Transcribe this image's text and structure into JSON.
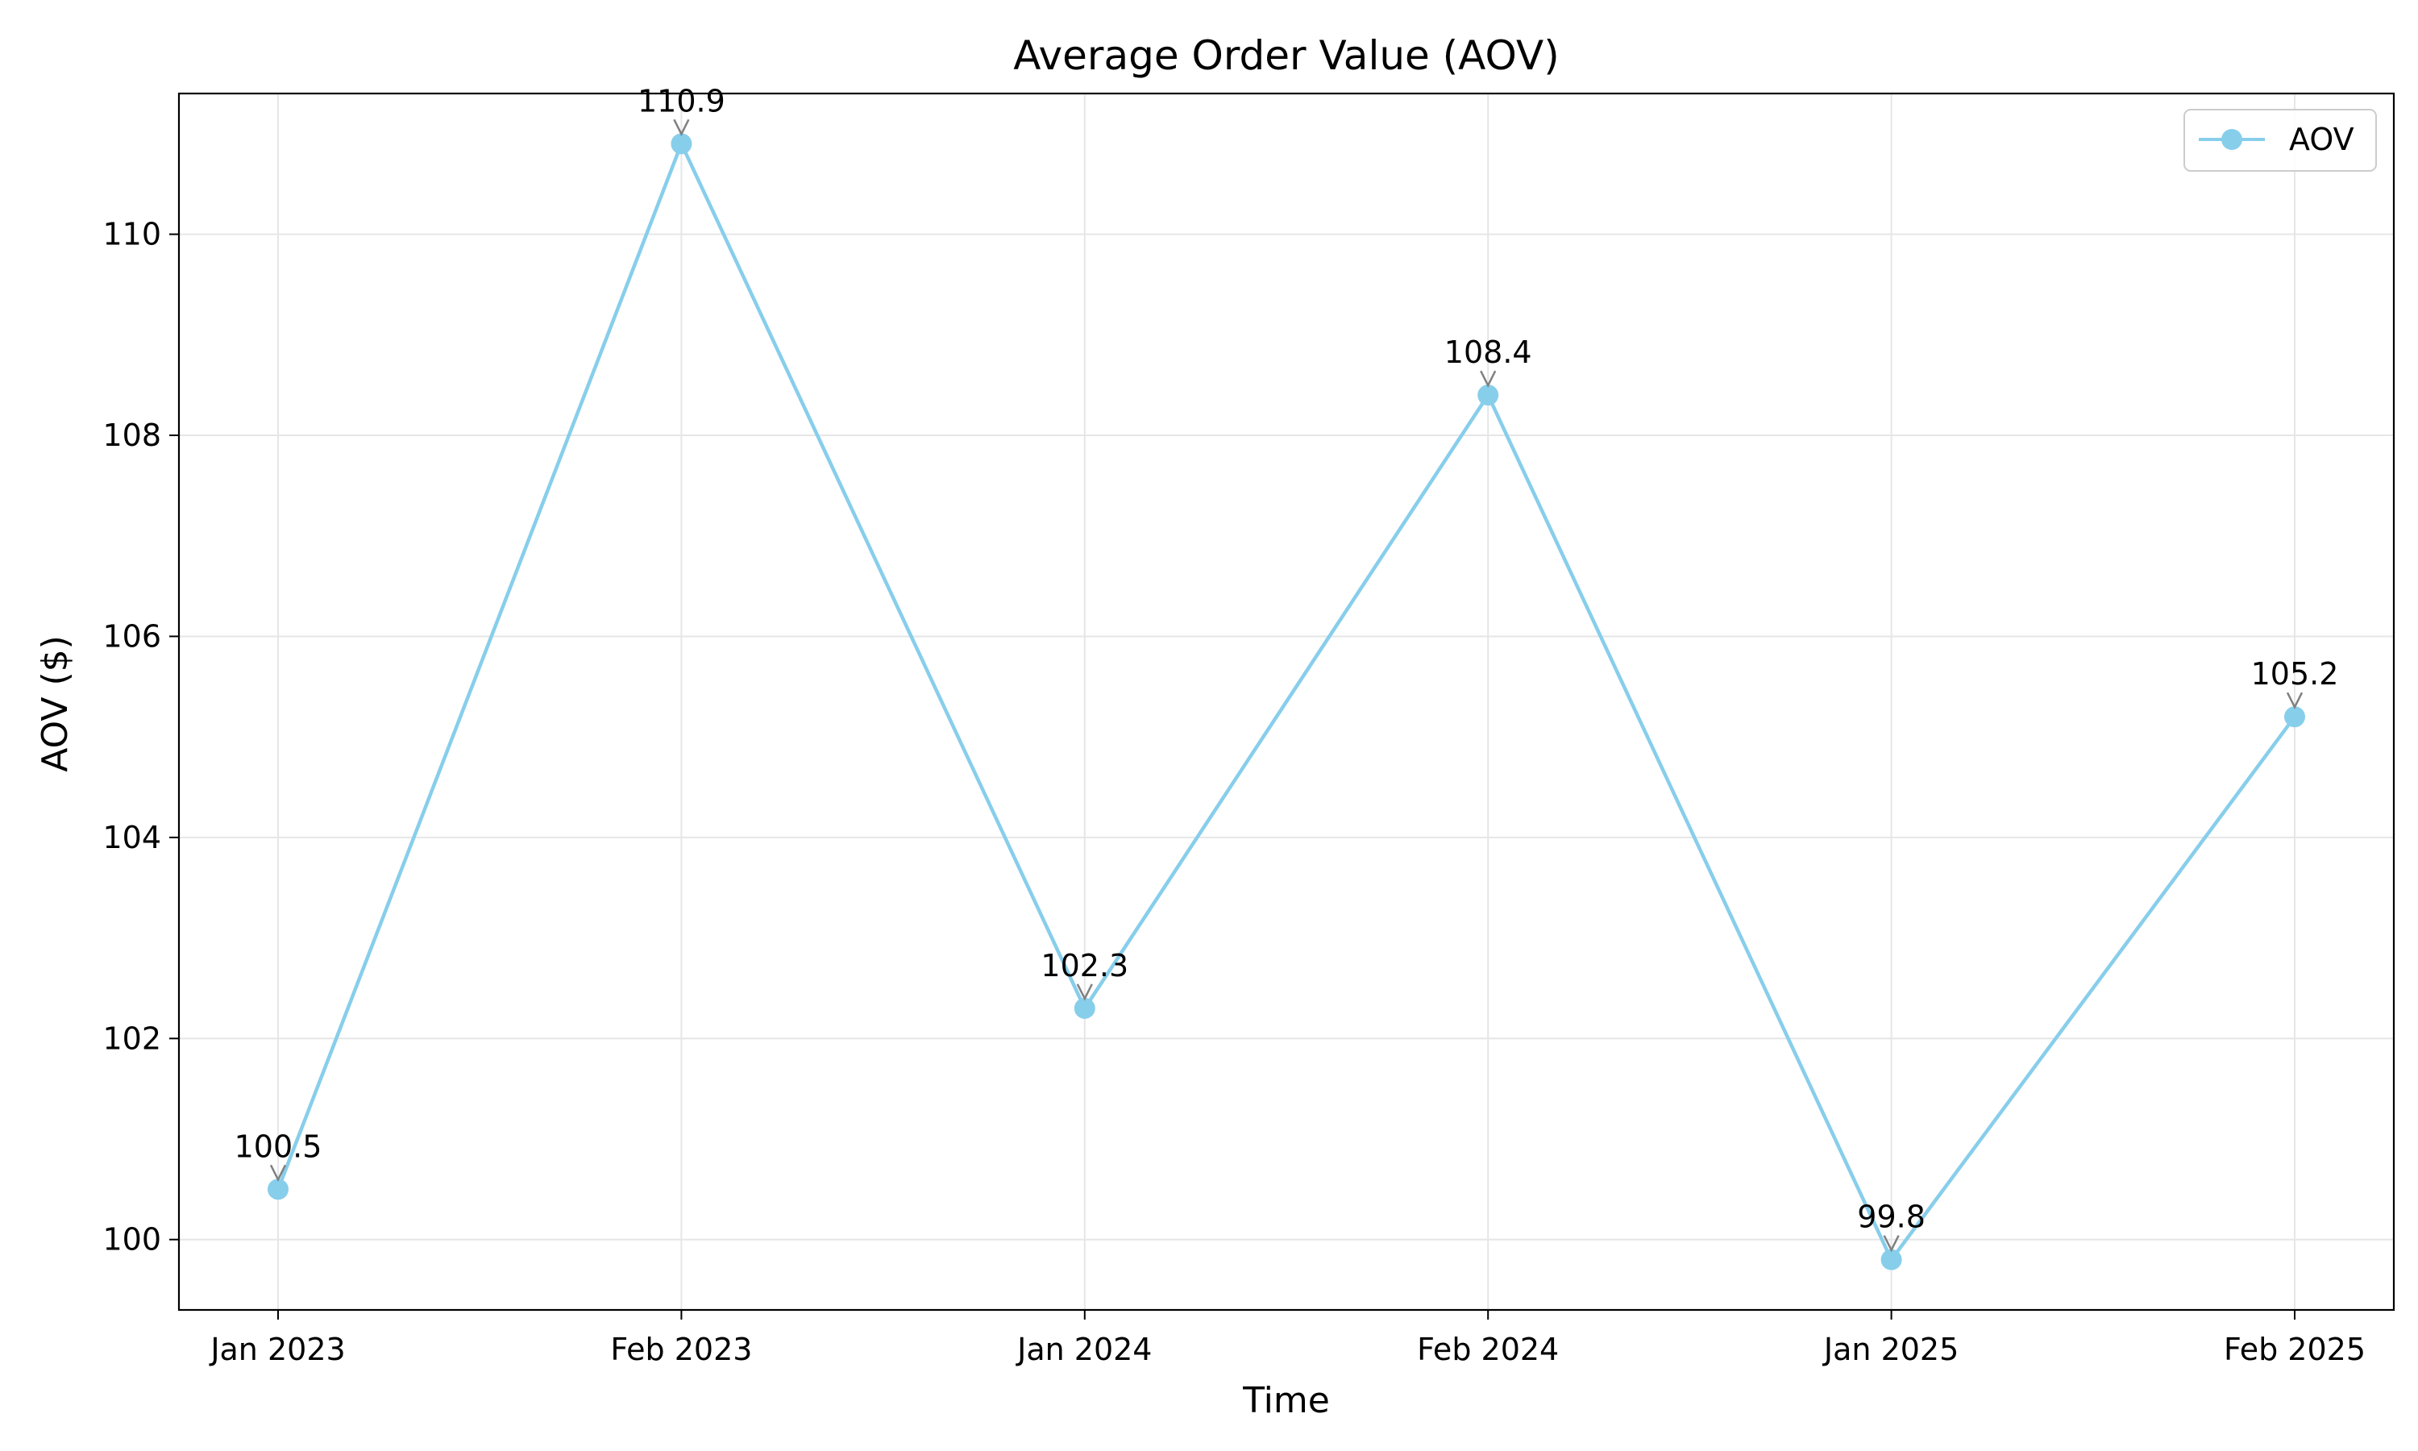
{
  "chart_data": {
    "type": "line",
    "title": "Average Order Value (AOV)",
    "xlabel": "Time",
    "ylabel": "AOV ($)",
    "categories": [
      "Jan 2023",
      "Feb 2023",
      "Jan 2024",
      "Feb 2024",
      "Jan 2025",
      "Feb 2025"
    ],
    "series": [
      {
        "name": "AOV",
        "values": [
          100.5,
          110.9,
          102.3,
          108.4,
          99.8,
          105.2
        ],
        "color": "#87ceeb"
      }
    ],
    "data_labels": [
      "100.5",
      "110.9",
      "102.3",
      "108.4",
      "99.8",
      "105.2"
    ],
    "ylim": [
      99.3,
      111.4
    ],
    "yticks": [
      100,
      102,
      104,
      106,
      108,
      110
    ],
    "grid": true,
    "legend_position": "top-right",
    "annotation_arrow_color": "#808080"
  }
}
